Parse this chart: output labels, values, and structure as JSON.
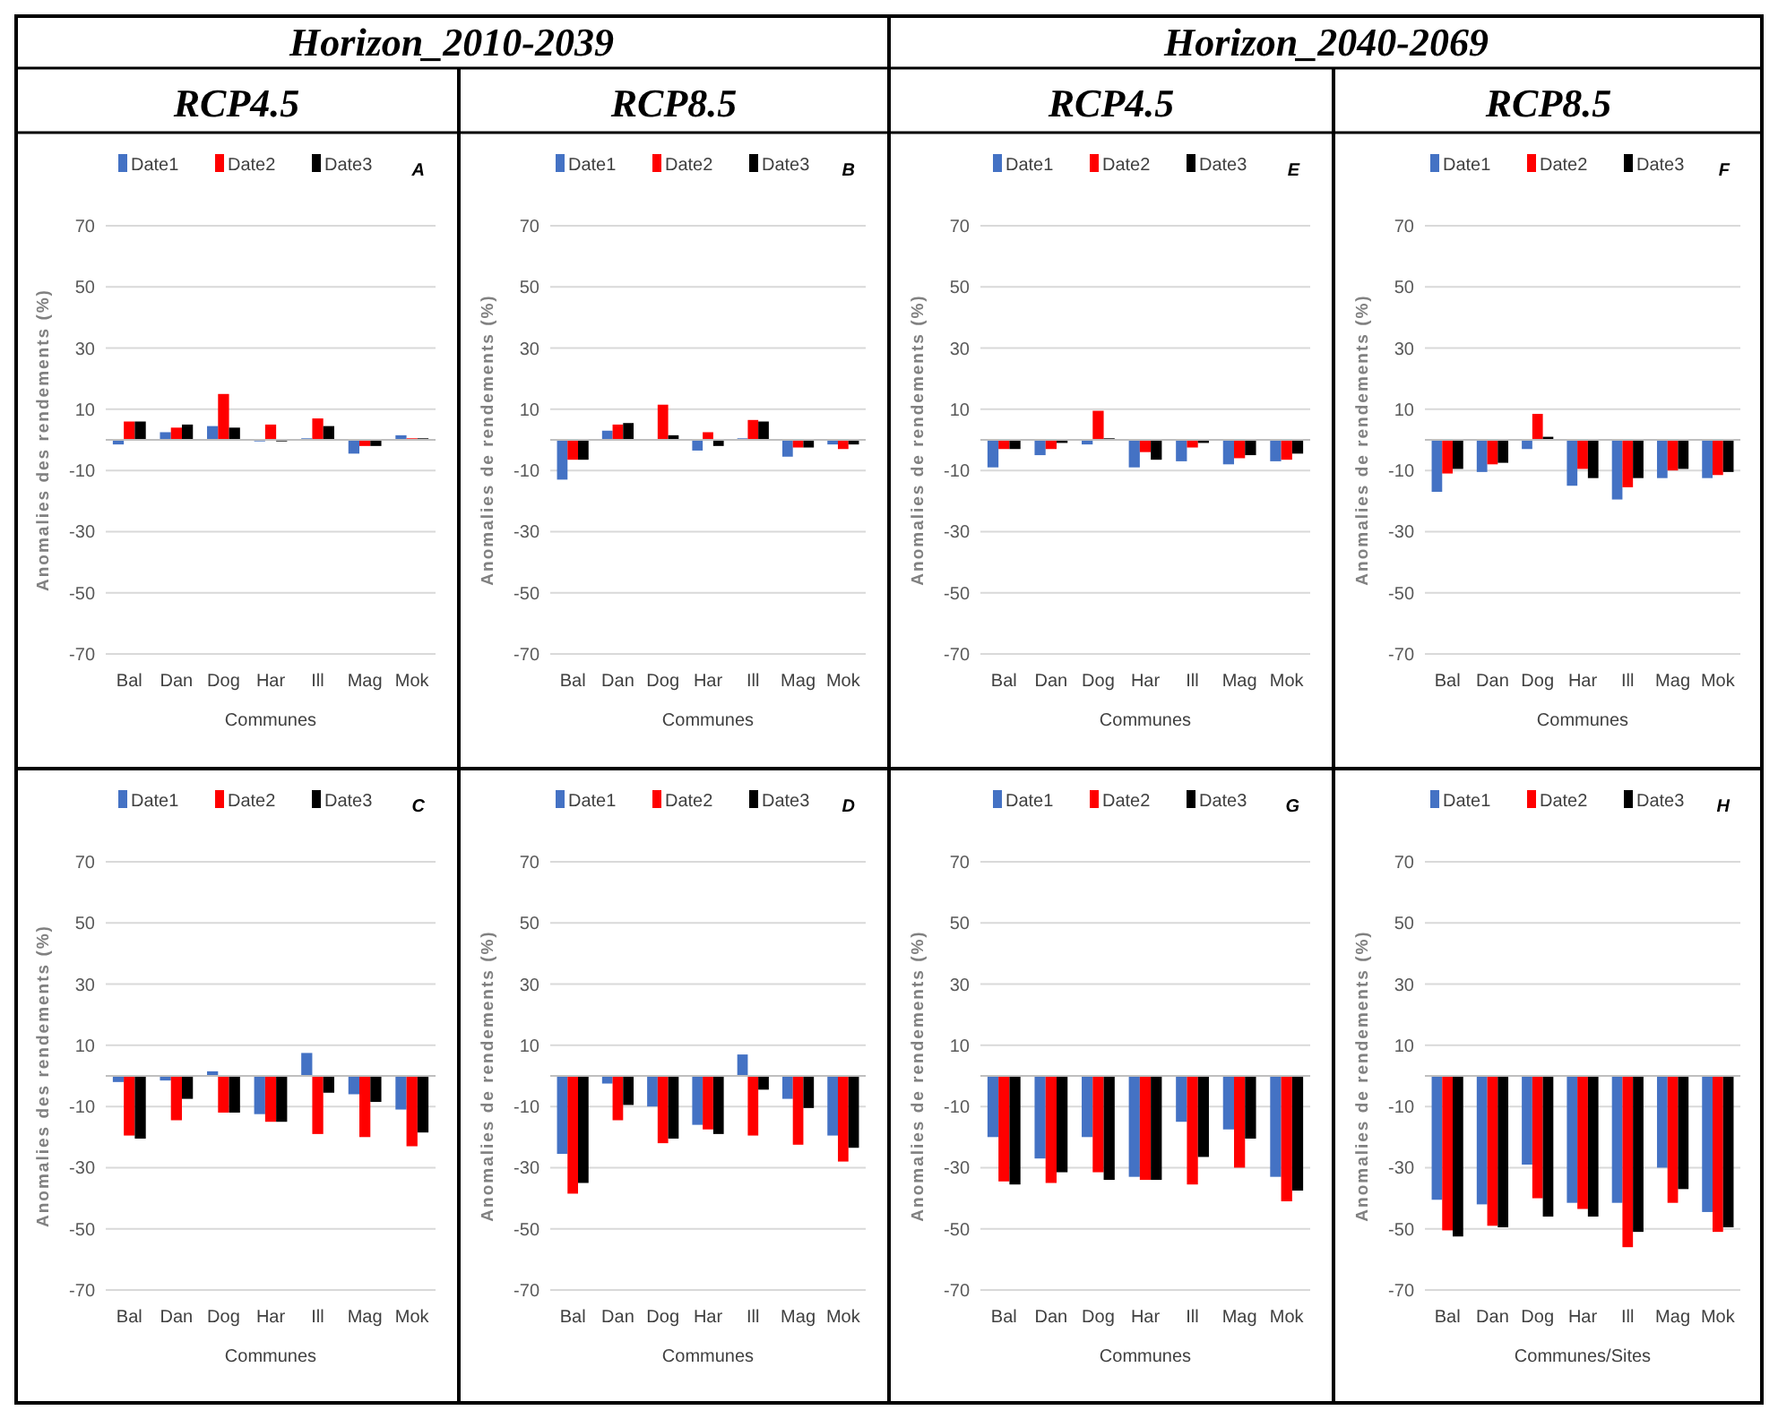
{
  "chart_data": [
    {
      "type": "bar",
      "title": "Horizon_2010-2039",
      "subtitle": "RCP4.5",
      "xlabel": "Communes",
      "ylabel": "Anomalies des rendements (%)",
      "annotations": [
        "A"
      ],
      "categories": [
        "Bal",
        "Dan",
        "Dog",
        "Har",
        "Ill",
        "Mag",
        "Mok"
      ],
      "ylim": [
        -70,
        70
      ],
      "yticks": [
        -70,
        -50,
        -30,
        -10,
        10,
        30,
        50,
        70
      ],
      "grid": "y",
      "legend": "top",
      "series": [
        {
          "name": "Date1",
          "color": "#4472c4",
          "values": [
            -1.5,
            2.5,
            4.5,
            -0.5,
            0.5,
            -4.5,
            1.5
          ]
        },
        {
          "name": "Date2",
          "color": "#ff0000",
          "values": [
            6,
            4,
            15,
            5,
            7,
            -2,
            0.5
          ]
        },
        {
          "name": "Date3",
          "color": "#000000",
          "values": [
            6,
            5,
            4,
            -0.5,
            4.5,
            -2,
            0.5
          ]
        }
      ]
    },
    {
      "type": "bar",
      "subtitle": "RCP8.5",
      "xlabel": "Communes",
      "ylabel": "Anomalies de rendements (%)",
      "annotations": [
        "B"
      ],
      "categories": [
        "Bal",
        "Dan",
        "Dog",
        "Har",
        "Ill",
        "Mag",
        "Mok"
      ],
      "ylim": [
        -70,
        70
      ],
      "yticks": [
        -70,
        -50,
        -30,
        -10,
        10,
        30,
        50,
        70
      ],
      "grid": "y",
      "legend": "top",
      "series": [
        {
          "name": "Date1",
          "color": "#4472c4",
          "values": [
            -13,
            3,
            0,
            -3.5,
            0.5,
            -5.5,
            -1.5
          ]
        },
        {
          "name": "Date2",
          "color": "#ff0000",
          "values": [
            -6.5,
            5,
            11.5,
            2.5,
            6.5,
            -2.5,
            -3
          ]
        },
        {
          "name": "Date3",
          "color": "#000000",
          "values": [
            -6.5,
            5.5,
            1.5,
            -2,
            6,
            -2.5,
            -1.5
          ]
        }
      ]
    },
    {
      "type": "bar",
      "title": "Horizon_2040-2069",
      "subtitle": "RCP4.5",
      "xlabel": "Communes",
      "ylabel": "Anomalies de rendements (%)",
      "annotations": [
        "E"
      ],
      "categories": [
        "Bal",
        "Dan",
        "Dog",
        "Har",
        "Ill",
        "Mag",
        "Mok"
      ],
      "ylim": [
        -70,
        70
      ],
      "yticks": [
        -70,
        -50,
        -30,
        -10,
        10,
        30,
        50,
        70
      ],
      "grid": "y",
      "legend": "top",
      "series": [
        {
          "name": "Date1",
          "color": "#4472c4",
          "values": [
            -9,
            -5,
            -1.5,
            -9,
            -7,
            -8,
            -7
          ]
        },
        {
          "name": "Date2",
          "color": "#ff0000",
          "values": [
            -3,
            -3,
            9.5,
            -4,
            -2.5,
            -6,
            -6.5
          ]
        },
        {
          "name": "Date3",
          "color": "#000000",
          "values": [
            -3,
            -1,
            0.5,
            -6.5,
            -1,
            -5,
            -4.5
          ]
        }
      ]
    },
    {
      "type": "bar",
      "subtitle": "RCP8.5",
      "xlabel": "Communes",
      "ylabel": "Anomalies de rendements (%)",
      "annotations": [
        "F"
      ],
      "categories": [
        "Bal",
        "Dan",
        "Dog",
        "Har",
        "Ill",
        "Mag",
        "Mok"
      ],
      "ylim": [
        -70,
        70
      ],
      "yticks": [
        -70,
        -50,
        -30,
        -10,
        10,
        30,
        50,
        70
      ],
      "grid": "y",
      "legend": "top",
      "series": [
        {
          "name": "Date1",
          "color": "#4472c4",
          "values": [
            -17,
            -10.5,
            -3,
            -15,
            -19.5,
            -12.5,
            -12.5
          ]
        },
        {
          "name": "Date2",
          "color": "#ff0000",
          "values": [
            -11,
            -8,
            8.5,
            -9.5,
            -15.5,
            -10,
            -11.5
          ]
        },
        {
          "name": "Date3",
          "color": "#000000",
          "values": [
            -9.5,
            -7.5,
            1,
            -12.5,
            -12.5,
            -9.5,
            -10.5
          ]
        }
      ]
    },
    {
      "type": "bar",
      "xlabel": "Communes",
      "ylabel": "Anomalies des rendements (%)",
      "annotations": [
        "C"
      ],
      "categories": [
        "Bal",
        "Dan",
        "Dog",
        "Har",
        "Ill",
        "Mag",
        "Mok"
      ],
      "ylim": [
        -70,
        70
      ],
      "yticks": [
        -70,
        -50,
        -30,
        -10,
        10,
        30,
        50,
        70
      ],
      "grid": "y",
      "legend": "top",
      "series": [
        {
          "name": "Date1",
          "color": "#4472c4",
          "values": [
            -2,
            -1.5,
            1.5,
            -12.5,
            7.5,
            -6,
            -11
          ]
        },
        {
          "name": "Date2",
          "color": "#ff0000",
          "values": [
            -19.5,
            -14.5,
            -12,
            -15,
            -19,
            -20,
            -23
          ]
        },
        {
          "name": "Date3",
          "color": "#000000",
          "values": [
            -20.5,
            -7.5,
            -12,
            -15,
            -5.5,
            -8.5,
            -18.5
          ]
        }
      ]
    },
    {
      "type": "bar",
      "xlabel": "Communes",
      "ylabel": "Anomalies de rendements (%)",
      "annotations": [
        "D"
      ],
      "categories": [
        "Bal",
        "Dan",
        "Dog",
        "Har",
        "Ill",
        "Mag",
        "Mok"
      ],
      "ylim": [
        -70,
        70
      ],
      "yticks": [
        -70,
        -50,
        -30,
        -10,
        10,
        30,
        50,
        70
      ],
      "grid": "y",
      "legend": "top",
      "series": [
        {
          "name": "Date1",
          "color": "#4472c4",
          "values": [
            -25.5,
            -2.5,
            -10,
            -16,
            7,
            -7.5,
            -19.5
          ]
        },
        {
          "name": "Date2",
          "color": "#ff0000",
          "values": [
            -38.5,
            -14.5,
            -22,
            -17.5,
            -19.5,
            -22.5,
            -28
          ]
        },
        {
          "name": "Date3",
          "color": "#000000",
          "values": [
            -35,
            -9.5,
            -20.5,
            -19,
            -4.5,
            -10.5,
            -23.5
          ]
        }
      ]
    },
    {
      "type": "bar",
      "xlabel": "Communes",
      "ylabel": "Anomalies de rendements (%)",
      "annotations": [
        "G"
      ],
      "categories": [
        "Bal",
        "Dan",
        "Dog",
        "Har",
        "Ill",
        "Mag",
        "Mok"
      ],
      "ylim": [
        -70,
        70
      ],
      "yticks": [
        -70,
        -50,
        -30,
        -10,
        10,
        30,
        50,
        70
      ],
      "grid": "y",
      "legend": "top",
      "series": [
        {
          "name": "Date1",
          "color": "#4472c4",
          "values": [
            -20,
            -27,
            -20,
            -33,
            -15,
            -17.5,
            -33
          ]
        },
        {
          "name": "Date2",
          "color": "#ff0000",
          "values": [
            -34.5,
            -35,
            -31.5,
            -34,
            -35.5,
            -30,
            -41
          ]
        },
        {
          "name": "Date3",
          "color": "#000000",
          "values": [
            -35.5,
            -31.5,
            -34,
            -34,
            -26.5,
            -20.5,
            -37.5
          ]
        }
      ]
    },
    {
      "type": "bar",
      "xlabel": "Communes/Sites",
      "ylabel": "Anomalies de rendements (%)",
      "annotations": [
        "H"
      ],
      "categories": [
        "Bal",
        "Dan",
        "Dog",
        "Har",
        "Ill",
        "Mag",
        "Mok"
      ],
      "ylim": [
        -70,
        70
      ],
      "yticks": [
        -70,
        -50,
        -30,
        -10,
        10,
        30,
        50,
        70
      ],
      "grid": "y",
      "legend": "top",
      "series": [
        {
          "name": "Date1",
          "color": "#4472c4",
          "values": [
            -40.5,
            -42,
            -29,
            -41.5,
            -41.5,
            -30,
            -44.5
          ]
        },
        {
          "name": "Date2",
          "color": "#ff0000",
          "values": [
            -50.5,
            -49,
            -40,
            -43.5,
            -56,
            -41.5,
            -51
          ]
        },
        {
          "name": "Date3",
          "color": "#000000",
          "values": [
            -52.5,
            -49.5,
            -46,
            -46,
            -51,
            -37,
            -49.5
          ]
        }
      ]
    }
  ]
}
